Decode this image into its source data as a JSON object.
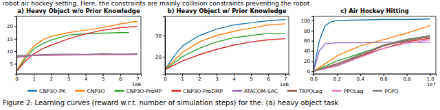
{
  "top_text": "robot air hockey setting. Here, the constraints are mainly collision constraints preventing the robot",
  "caption": "Figure 2: Learning curves (reward w.r.t. number of simulation steps) for the: (a) heavy object task",
  "shared_legend": [
    {
      "name": "CNP3O-PK",
      "color": "#1f77b4"
    },
    {
      "name": "CNP3O",
      "color": "#ff7f0e"
    },
    {
      "name": "CNP3O-ProMP",
      "color": "#2ca02c"
    },
    {
      "name": "CNP3O-ProDMP",
      "color": "#d62728"
    },
    {
      "name": "ATACOM-SAC",
      "color": "#9467bd"
    },
    {
      "name": "TRPOLag",
      "color": "#8c564b"
    },
    {
      "name": "PPOLag",
      "color": "#e377c2"
    },
    {
      "name": "PCPO",
      "color": "#7f7f7f"
    }
  ],
  "chart_data": [
    {
      "type": "line",
      "title": "a) Heavy Object w/o Prior Knowledge",
      "x_unit": "1e6",
      "xlim": [
        0,
        7.2
      ],
      "xticks": [
        0,
        1,
        2,
        3,
        4,
        5,
        6,
        7
      ],
      "ylim": [
        1,
        24
      ],
      "yticks": [
        5,
        10,
        15,
        20
      ],
      "series": [
        {
          "name": "CNP3O",
          "color": "#ff7f0e",
          "x": [
            0,
            0.5,
            1,
            1.5,
            2,
            3,
            4,
            5,
            6,
            7
          ],
          "values": [
            2,
            8,
            12,
            14.5,
            16,
            17.5,
            18.5,
            19.5,
            21,
            22
          ]
        },
        {
          "name": "CNP3O-ProMP",
          "color": "#2ca02c",
          "x": [
            0,
            0.5,
            1,
            1.5,
            2,
            3,
            4,
            5,
            6,
            6.5
          ],
          "values": [
            2,
            7,
            11,
            13,
            14.5,
            16.5,
            17,
            17.3,
            17.5,
            17.5
          ]
        },
        {
          "name": "CNP3O-ProDMP",
          "color": "#d62728",
          "x": [
            0,
            0.5,
            1,
            1.5,
            2,
            3,
            4,
            5,
            6,
            7
          ],
          "values": [
            2,
            6,
            9,
            11,
            12.5,
            15,
            17,
            18.5,
            19.5,
            20
          ]
        },
        {
          "name": "ATACOM-SAC",
          "color": "#9467bd",
          "x": [
            0,
            0.5,
            1,
            2,
            3,
            4,
            5,
            6,
            7
          ],
          "values": [
            7.5,
            8,
            8.3,
            8.5,
            8.6,
            8.6,
            8.7,
            8.7,
            8.8
          ]
        },
        {
          "name": "TRPOLag",
          "color": "#8c564b",
          "x": [
            0,
            0.5,
            1,
            2,
            3,
            4,
            5,
            6,
            7
          ],
          "values": [
            7.8,
            8.2,
            8.4,
            8.6,
            8.5,
            8.7,
            8.6,
            8.8,
            8.7
          ]
        },
        {
          "name": "PPOLag",
          "color": "#e377c2",
          "x": [
            0,
            0.5,
            1,
            2,
            3,
            4,
            5,
            6,
            7
          ],
          "values": [
            8,
            8.3,
            8.5,
            8.4,
            8.6,
            8.5,
            8.7,
            8.6,
            8.8
          ]
        },
        {
          "name": "PCPO",
          "color": "#7f7f7f",
          "x": [
            0,
            0.5,
            1,
            2,
            3,
            4,
            5,
            6,
            7
          ],
          "values": [
            8.2,
            8.5,
            8.6,
            8.8,
            8.9,
            8.8,
            9,
            8.9,
            9
          ]
        }
      ]
    },
    {
      "type": "line",
      "title": "b) Heavy Object w/ Prior Knowledge",
      "x_unit": "1e6",
      "xlim": [
        0,
        7.2
      ],
      "xticks": [
        0,
        1,
        2,
        3,
        4,
        5,
        6,
        7
      ],
      "ylim": [
        12,
        39
      ],
      "yticks": [
        20,
        30
      ],
      "series": [
        {
          "name": "CNP3O-PK",
          "color": "#1f77b4",
          "x": [
            0,
            0.5,
            1,
            2,
            3,
            4,
            5,
            6,
            7
          ],
          "values": [
            14,
            20,
            25,
            30,
            33,
            35,
            36,
            37,
            37.5
          ]
        },
        {
          "name": "CNP3O",
          "color": "#ff7f0e",
          "x": [
            0,
            0.5,
            1,
            2,
            3,
            4,
            5,
            6,
            7
          ],
          "values": [
            14,
            18,
            22,
            27,
            30,
            32,
            33.5,
            35,
            35.5
          ]
        },
        {
          "name": "CNP3O-ProMP",
          "color": "#2ca02c",
          "x": [
            0,
            0.5,
            1,
            2,
            3,
            4,
            5,
            6,
            7
          ],
          "values": [
            14,
            17,
            20,
            24,
            27,
            29,
            30,
            31,
            31
          ]
        },
        {
          "name": "CNP3O-ProDMP",
          "color": "#d62728",
          "x": [
            0,
            0.5,
            1,
            2,
            3,
            4,
            5,
            6,
            7
          ],
          "values": [
            14,
            16,
            18,
            21,
            23.5,
            25.5,
            27,
            28,
            28.5
          ]
        }
      ]
    },
    {
      "type": "line",
      "title": "c) Air Hockey Hitting",
      "x_unit": "1e7",
      "xlim": [
        0,
        1.05
      ],
      "xticks": [
        {
          "value": 0,
          "label": "0.0"
        },
        {
          "value": 0.2,
          "label": "0.2"
        },
        {
          "value": 0.4,
          "label": "0.4"
        },
        {
          "value": 0.6,
          "label": "0.6"
        },
        {
          "value": 0.8,
          "label": "0.8"
        },
        {
          "value": 1,
          "label": "1.0"
        }
      ],
      "ylim": [
        -5,
        108
      ],
      "yticks": [
        0,
        20,
        40,
        60,
        80,
        100
      ],
      "series": [
        {
          "name": "CNP3O-PK",
          "color": "#1f77b4",
          "x": [
            0,
            0.05,
            0.1,
            0.15,
            0.2,
            0.4,
            0.6,
            0.8,
            1.0
          ],
          "values": [
            0,
            60,
            90,
            97,
            100,
            101,
            102,
            102,
            103
          ]
        },
        {
          "name": "CNP3O",
          "color": "#ff7f0e",
          "x": [
            0,
            0.1,
            0.2,
            0.4,
            0.6,
            0.8,
            1.0
          ],
          "values": [
            0,
            15,
            30,
            50,
            62,
            75,
            90
          ]
        },
        {
          "name": "CNP3O-ProMP",
          "color": "#2ca02c",
          "x": [
            0,
            0.2,
            0.4,
            0.6,
            0.8,
            1.0
          ],
          "values": [
            0,
            20,
            35,
            50,
            62,
            70
          ]
        },
        {
          "name": "CNP3O-ProDMP",
          "color": "#d62728",
          "x": [
            0,
            0.2,
            0.4,
            0.6,
            0.8,
            1.0
          ],
          "values": [
            0,
            15,
            30,
            45,
            58,
            65
          ]
        },
        {
          "name": "ATACOM-SAC",
          "color": "#9467bd",
          "x": [
            0,
            0.05,
            0.1,
            0.2,
            0.4,
            0.6,
            0.8,
            1.0
          ],
          "values": [
            0,
            40,
            54,
            56,
            56,
            57,
            57,
            57
          ]
        },
        {
          "name": "TRPOLag",
          "color": "#8c564b",
          "x": [
            0,
            0.2,
            0.4,
            0.6,
            0.8,
            1.0
          ],
          "values": [
            0,
            12,
            30,
            50,
            60,
            68
          ]
        },
        {
          "name": "PPOLag",
          "color": "#e377c2",
          "x": [
            0,
            0.2,
            0.4,
            0.6,
            0.8,
            1.0
          ],
          "values": [
            0,
            10,
            27,
            45,
            55,
            62
          ]
        },
        {
          "name": "PCPO",
          "color": "#7f7f7f",
          "x": [
            0,
            0.2,
            0.4,
            0.6,
            0.8,
            1.0
          ],
          "values": [
            0,
            14,
            33,
            52,
            63,
            70
          ]
        }
      ]
    }
  ]
}
